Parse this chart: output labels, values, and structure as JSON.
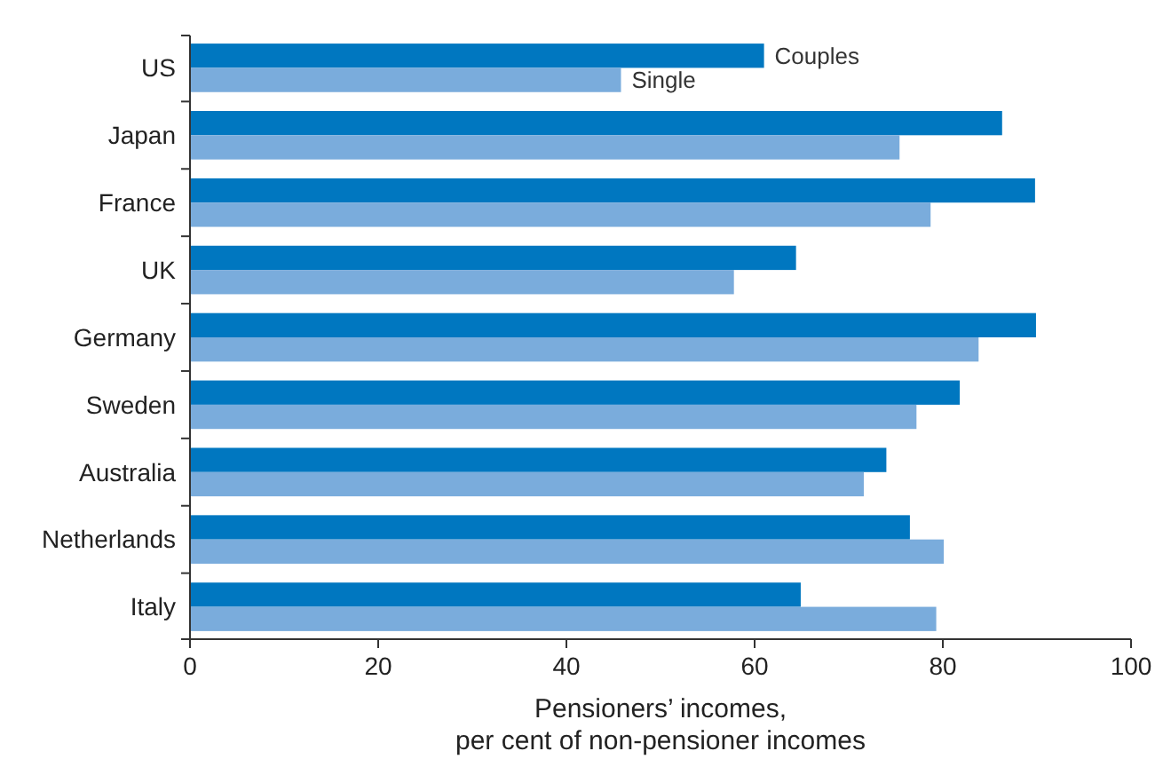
{
  "chart_data": {
    "type": "bar",
    "orientation": "horizontal",
    "categories": [
      "US",
      "Japan",
      "France",
      "UK",
      "Germany",
      "Sweden",
      "Australia",
      "Netherlands",
      "Italy"
    ],
    "series": [
      {
        "name": "Couples",
        "color": "#0077c0",
        "values": [
          61.0,
          86.3,
          89.8,
          64.4,
          89.9,
          81.8,
          74.0,
          76.5,
          64.9
        ]
      },
      {
        "name": "Single",
        "color": "#7aacdc",
        "values": [
          45.8,
          75.4,
          78.7,
          57.8,
          83.8,
          77.2,
          71.6,
          80.1,
          79.3
        ]
      }
    ],
    "xlim": [
      0,
      100
    ],
    "xticks": [
      0,
      20,
      40,
      60,
      80,
      100
    ],
    "xlabel": "Pensioners’ incomes,\nper cent of non-pensioner incomes",
    "grid": false,
    "legend": false
  }
}
